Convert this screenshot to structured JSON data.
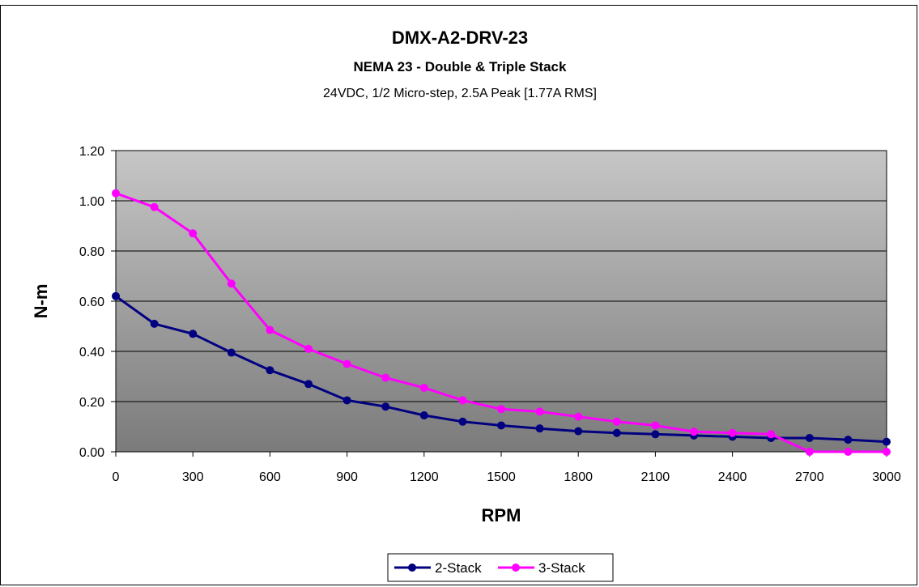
{
  "chart_data": {
    "type": "line",
    "title": "DMX-A2-DRV-23",
    "subtitle": "NEMA 23 - Double & Triple Stack",
    "subtitle2": "24VDC, 1/2 Micro-step, 2.5A Peak [1.77A RMS]",
    "xlabel": "RPM",
    "ylabel": "N-m",
    "xlim": [
      0,
      3000
    ],
    "ylim": [
      0,
      1.2
    ],
    "xticks": [
      "0",
      "300",
      "600",
      "900",
      "1200",
      "1500",
      "1800",
      "2100",
      "2400",
      "2700",
      "3000"
    ],
    "yticks": [
      "0.00",
      "0.20",
      "0.40",
      "0.60",
      "0.80",
      "1.00",
      "1.20"
    ],
    "grid": true,
    "legend_position": "bottom",
    "series": [
      {
        "name": "2-Stack",
        "color": "#000080",
        "x": [
          0,
          150,
          300,
          450,
          600,
          750,
          900,
          1050,
          1200,
          1350,
          1500,
          1650,
          1800,
          1950,
          2100,
          2250,
          2400,
          2550,
          2700,
          2850,
          3000
        ],
        "y": [
          0.62,
          0.51,
          0.47,
          0.395,
          0.325,
          0.27,
          0.205,
          0.18,
          0.145,
          0.12,
          0.105,
          0.093,
          0.082,
          0.075,
          0.07,
          0.065,
          0.06,
          0.055,
          0.055,
          0.048,
          0.04
        ]
      },
      {
        "name": "3-Stack",
        "color": "#ff00ff",
        "x": [
          0,
          150,
          300,
          450,
          600,
          750,
          900,
          1050,
          1200,
          1350,
          1500,
          1650,
          1800,
          1950,
          2100,
          2250,
          2400,
          2550,
          2700,
          2850,
          3000
        ],
        "y": [
          1.03,
          0.975,
          0.87,
          0.67,
          0.485,
          0.41,
          0.35,
          0.295,
          0.255,
          0.205,
          0.17,
          0.16,
          0.14,
          0.12,
          0.105,
          0.08,
          0.075,
          0.07,
          0.0,
          0.0,
          0.0
        ]
      }
    ]
  }
}
